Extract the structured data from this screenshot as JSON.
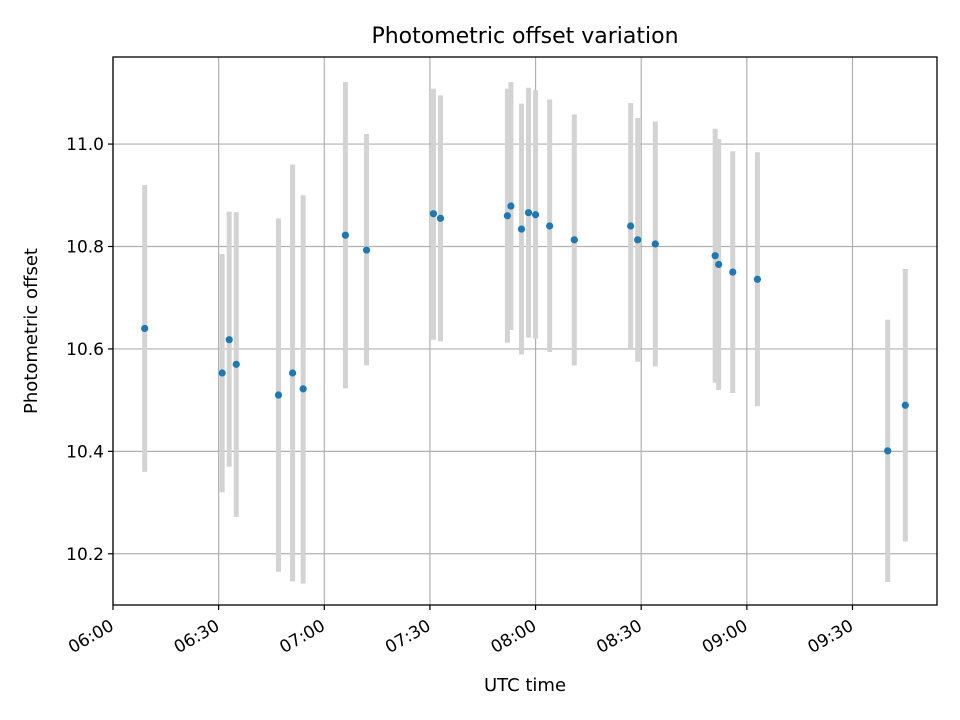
{
  "chart_data": {
    "type": "scatter",
    "title": "Photometric offset variation",
    "xlabel": "UTC time",
    "ylabel": "Photometric offset",
    "x_unit": "UTC time",
    "xlim": [
      "06:00",
      "09:54"
    ],
    "ylim": [
      10.1,
      11.17
    ],
    "xticks": [
      "06:00",
      "06:30",
      "07:00",
      "07:30",
      "08:00",
      "08:30",
      "09:00",
      "09:30"
    ],
    "yticks": [
      "10.2",
      "10.4",
      "10.6",
      "10.8",
      "11.0"
    ],
    "grid": true,
    "marker_color": "#1f77b4",
    "errorbar_color": "#d3d3d3",
    "points": [
      {
        "t": "06:09",
        "y": 10.64,
        "low": 10.36,
        "high": 10.92
      },
      {
        "t": "06:31",
        "y": 10.553,
        "low": 10.32,
        "high": 10.785
      },
      {
        "t": "06:33",
        "y": 10.618,
        "low": 10.37,
        "high": 10.868
      },
      {
        "t": "06:35",
        "y": 10.57,
        "low": 10.272,
        "high": 10.867
      },
      {
        "t": "06:47",
        "y": 10.51,
        "low": 10.165,
        "high": 10.855
      },
      {
        "t": "06:51",
        "y": 10.553,
        "low": 10.146,
        "high": 10.96
      },
      {
        "t": "06:54",
        "y": 10.522,
        "low": 10.142,
        "high": 10.9
      },
      {
        "t": "07:06",
        "y": 10.822,
        "low": 10.523,
        "high": 11.121
      },
      {
        "t": "07:12",
        "y": 10.793,
        "low": 10.568,
        "high": 11.02
      },
      {
        "t": "07:31",
        "y": 10.864,
        "low": 10.618,
        "high": 11.108
      },
      {
        "t": "07:33",
        "y": 10.855,
        "low": 10.615,
        "high": 11.095
      },
      {
        "t": "07:52",
        "y": 10.86,
        "low": 10.612,
        "high": 11.108
      },
      {
        "t": "07:53",
        "y": 10.879,
        "low": 10.637,
        "high": 11.121
      },
      {
        "t": "07:56",
        "y": 10.834,
        "low": 10.589,
        "high": 11.079
      },
      {
        "t": "07:58",
        "y": 10.866,
        "low": 10.622,
        "high": 11.11
      },
      {
        "t": "08:00",
        "y": 10.862,
        "low": 10.62,
        "high": 11.105
      },
      {
        "t": "08:04",
        "y": 10.84,
        "low": 10.594,
        "high": 11.087
      },
      {
        "t": "08:11",
        "y": 10.813,
        "low": 10.568,
        "high": 11.058
      },
      {
        "t": "08:27",
        "y": 10.84,
        "low": 10.6,
        "high": 11.08
      },
      {
        "t": "08:29",
        "y": 10.813,
        "low": 10.575,
        "high": 11.051
      },
      {
        "t": "08:34",
        "y": 10.805,
        "low": 10.566,
        "high": 11.044
      },
      {
        "t": "08:51",
        "y": 10.782,
        "low": 10.534,
        "high": 11.03
      },
      {
        "t": "08:52",
        "y": 10.765,
        "low": 10.52,
        "high": 11.01
      },
      {
        "t": "08:56",
        "y": 10.75,
        "low": 10.514,
        "high": 10.986
      },
      {
        "t": "09:03",
        "y": 10.736,
        "low": 10.488,
        "high": 10.984
      },
      {
        "t": "09:40",
        "y": 10.401,
        "low": 10.145,
        "high": 10.657
      },
      {
        "t": "09:45",
        "y": 10.49,
        "low": 10.224,
        "high": 10.756
      }
    ]
  }
}
